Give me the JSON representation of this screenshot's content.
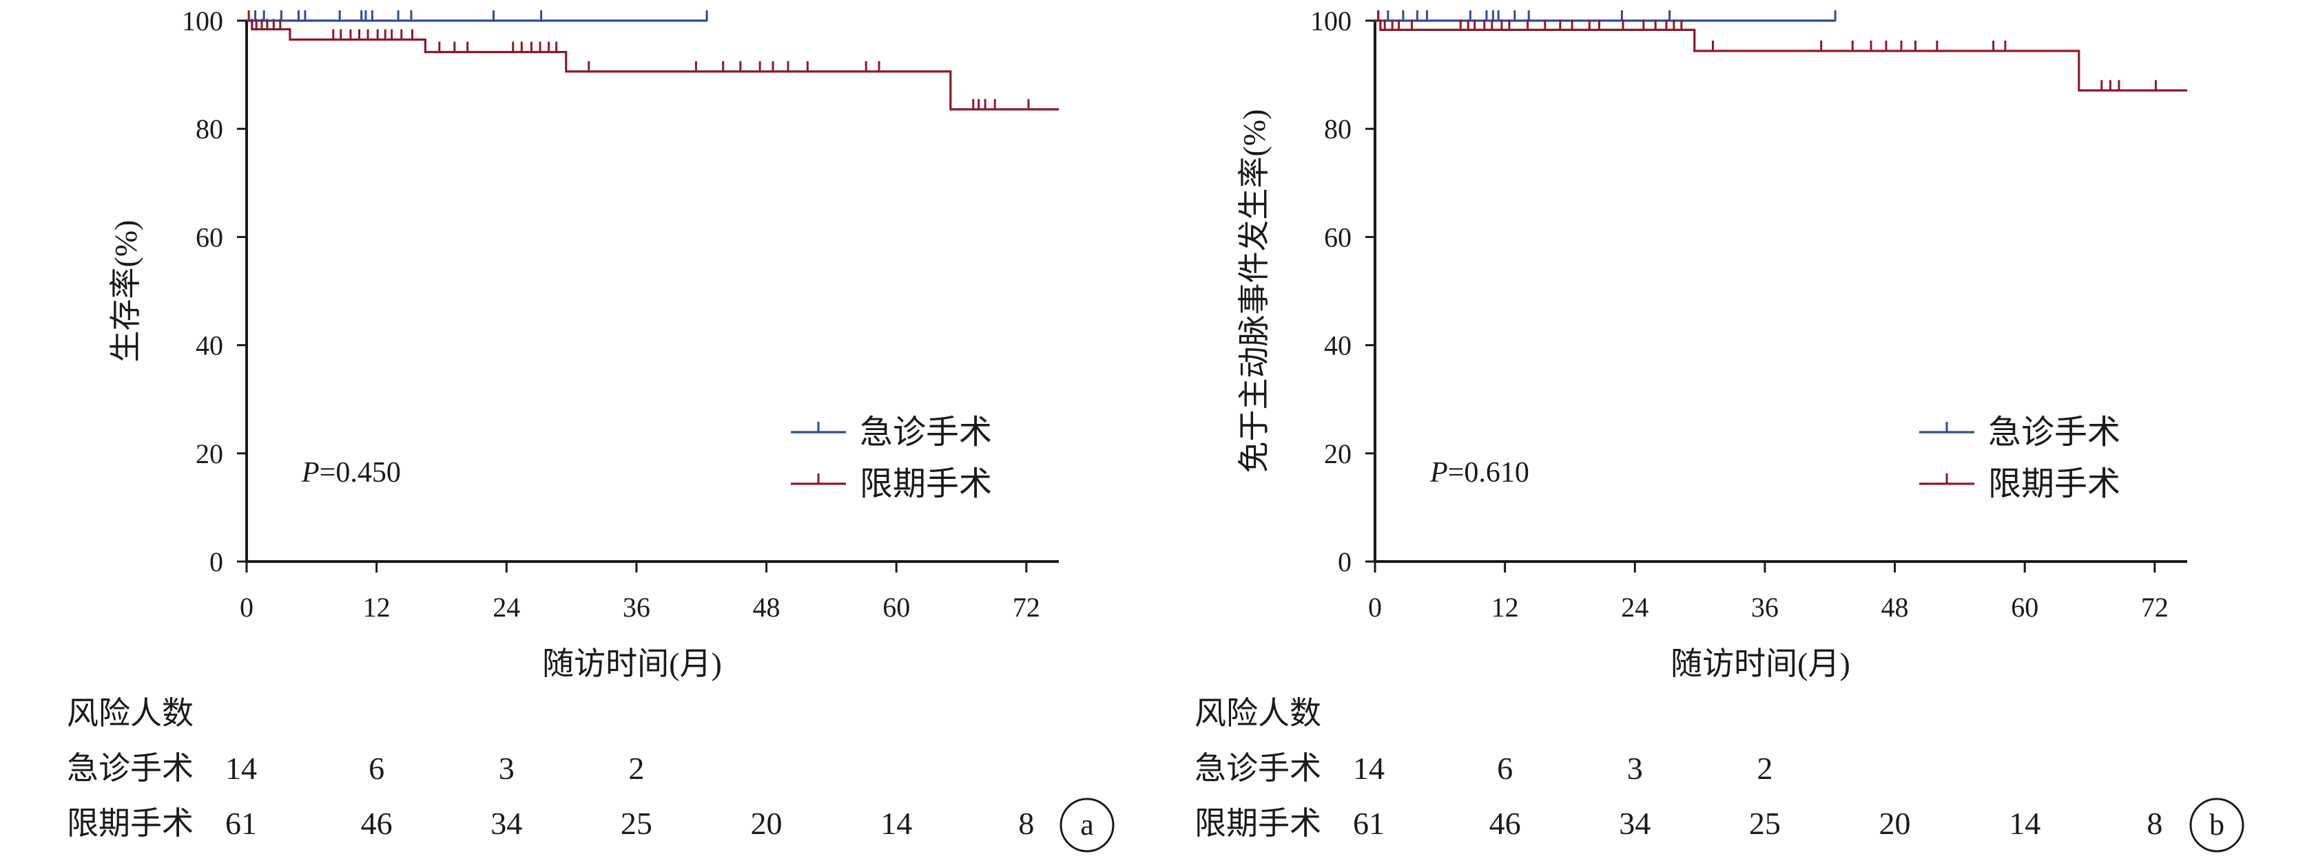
{
  "chart_data": [
    {
      "type": "line",
      "subtype": "kaplan-meier",
      "panel_label": "a",
      "xlabel": "随访时间(月)",
      "ylabel": "生存率(%)",
      "xlim": [
        0,
        75
      ],
      "ylim": [
        0,
        100
      ],
      "x_ticks": [
        0,
        12,
        24,
        36,
        48,
        60,
        72
      ],
      "y_ticks": [
        0,
        20,
        40,
        60,
        80,
        100
      ],
      "grid": false,
      "legend_position": "bottom-right",
      "annotation": {
        "prefix": "P",
        "text": "=0.450"
      },
      "series": [
        {
          "name": "急诊手术",
          "color": "#2f4a9a",
          "x": [
            0,
            42.5
          ],
          "y": [
            100,
            100
          ],
          "censor_x": [
            0.8,
            1.6,
            3.2,
            4.8,
            5.4,
            8.6,
            10.6,
            11.0,
            11.6,
            14.0,
            15.2,
            22.8,
            27.2,
            42.5
          ],
          "censor_y": [
            100,
            100,
            100,
            100,
            100,
            100,
            100,
            100,
            100,
            100,
            100,
            100,
            100,
            100
          ]
        },
        {
          "name": "限期手术",
          "color": "#8b1a2b",
          "x": [
            0,
            0.5,
            4,
            16.5,
            29.5,
            65,
            75
          ],
          "y": [
            100,
            98.4,
            96.5,
            94.2,
            90.6,
            83.6,
            83.6
          ],
          "censor_x": [
            0.2,
            0.5,
            0.9,
            1.4,
            1.9,
            2.5,
            3.1,
            8,
            8.7,
            9.6,
            10.4,
            11.2,
            12.1,
            12.8,
            13.4,
            14.3,
            15.3,
            17.8,
            19.2,
            20.4,
            24.6,
            25.4,
            26.3,
            27.1,
            27.9,
            28.6,
            31.6,
            41.5,
            44,
            45.6,
            47.4,
            48.6,
            50,
            51.8,
            57.2,
            58.4,
            67.1,
            67.6,
            68.2,
            69.1,
            72.2
          ],
          "censor_y": [
            100,
            98.4,
            98.4,
            98.4,
            98.4,
            98.4,
            98.4,
            96.5,
            96.5,
            96.5,
            96.5,
            96.5,
            96.5,
            96.5,
            96.5,
            96.5,
            96.5,
            94.2,
            94.2,
            94.2,
            94.2,
            94.2,
            94.2,
            94.2,
            94.2,
            94.2,
            90.6,
            90.6,
            90.6,
            90.6,
            90.6,
            90.6,
            90.6,
            90.6,
            90.6,
            90.6,
            83.6,
            83.6,
            83.6,
            83.6,
            83.6
          ]
        }
      ],
      "risk_table": {
        "title": "风险人数",
        "time_points": [
          0,
          12,
          24,
          36,
          48,
          60,
          72
        ],
        "rows": [
          {
            "label": "急诊手术",
            "values": [
              "14",
              "6",
              "3",
              "2"
            ]
          },
          {
            "label": "限期手术",
            "values": [
              "61",
              "46",
              "34",
              "25",
              "20",
              "14",
              "8"
            ]
          }
        ]
      }
    },
    {
      "type": "line",
      "subtype": "kaplan-meier",
      "panel_label": "b",
      "xlabel": "随访时间(月)",
      "ylabel": "免于主动脉事件发生率(%)",
      "xlim": [
        0,
        75
      ],
      "ylim": [
        0,
        100
      ],
      "x_ticks": [
        0,
        12,
        24,
        36,
        48,
        60,
        72
      ],
      "y_ticks": [
        0,
        20,
        40,
        60,
        80,
        100
      ],
      "grid": false,
      "legend_position": "bottom-right",
      "annotation": {
        "prefix": "P",
        "text": "=0.610"
      },
      "series": [
        {
          "name": "急诊手术",
          "color": "#2f4a9a",
          "x": [
            0,
            42.5
          ],
          "y": [
            100,
            100
          ],
          "censor_x": [
            0.3,
            1.2,
            2.6,
            3.9,
            4.8,
            8.8,
            10.3,
            10.9,
            11.4,
            12.9,
            14.2,
            22.8,
            27.2,
            42.5
          ],
          "censor_y": [
            100,
            100,
            100,
            100,
            100,
            100,
            100,
            100,
            100,
            100,
            100,
            100,
            100,
            100
          ]
        },
        {
          "name": "限期手术",
          "color": "#8b1a2b",
          "x": [
            0,
            0.5,
            29.5,
            65,
            75
          ],
          "y": [
            100,
            98.3,
            94.4,
            87.1,
            87.1
          ],
          "censor_x": [
            0.3,
            0.9,
            1.6,
            2.2,
            3.4,
            7.9,
            8.6,
            9.2,
            10.1,
            10.8,
            11.7,
            12.4,
            14.1,
            15.7,
            17.1,
            18.2,
            19.8,
            20.7,
            22.9,
            24.8,
            25.9,
            26.9,
            27.6,
            28.3,
            31.2,
            41.2,
            44.1,
            45.8,
            47.2,
            48.6,
            49.9,
            51.9,
            57.1,
            58.2,
            67.1,
            67.9,
            68.7,
            72.1
          ],
          "censor_y": [
            100,
            98.3,
            98.3,
            98.3,
            98.3,
            98.3,
            98.3,
            98.3,
            98.3,
            98.3,
            98.3,
            98.3,
            98.3,
            98.3,
            98.3,
            98.3,
            98.3,
            98.3,
            98.3,
            98.3,
            98.3,
            98.3,
            98.3,
            98.3,
            94.4,
            94.4,
            94.4,
            94.4,
            94.4,
            94.4,
            94.4,
            94.4,
            94.4,
            94.4,
            87.1,
            87.1,
            87.1,
            87.1
          ]
        }
      ],
      "risk_table": {
        "title": "风险人数",
        "time_points": [
          0,
          12,
          24,
          36,
          48,
          60,
          72
        ],
        "rows": [
          {
            "label": "急诊手术",
            "values": [
              "14",
              "6",
              "3",
              "2"
            ]
          },
          {
            "label": "限期手术",
            "values": [
              "61",
              "46",
              "34",
              "25",
              "20",
              "14",
              "8"
            ]
          }
        ]
      }
    }
  ]
}
